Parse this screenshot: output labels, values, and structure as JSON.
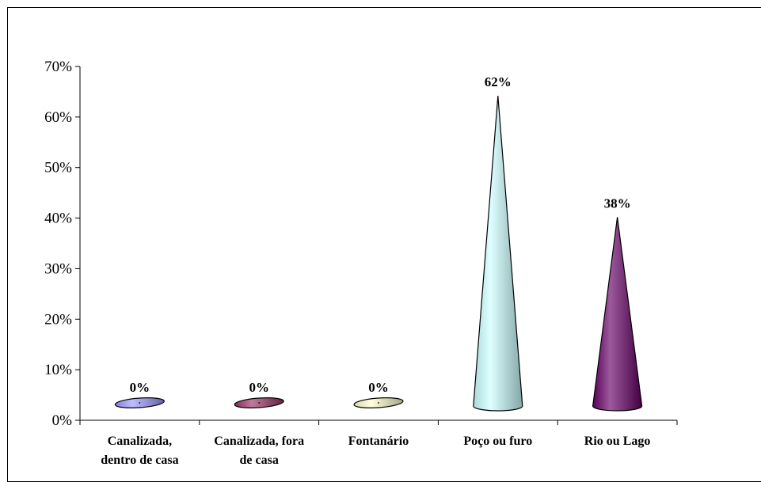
{
  "chart_data": {
    "type": "bar",
    "shape": "cone",
    "title": "",
    "xlabel": "",
    "ylabel": "",
    "categories": [
      [
        "Canalizada,",
        "dentro de casa"
      ],
      [
        "Canalizada, fora",
        "de casa"
      ],
      [
        "Fontanário"
      ],
      [
        "Poço ou furo"
      ],
      [
        "Rio ou Lago"
      ]
    ],
    "values": [
      0,
      0,
      0,
      62,
      38
    ],
    "data_labels": [
      "0%",
      "0%",
      "0%",
      "62%",
      "38%"
    ],
    "colors": [
      "#9999ff",
      "#993366",
      "#ffffcc",
      "#ccffff",
      "#660066"
    ],
    "ylim": [
      0,
      70
    ],
    "yticks": [
      "0%",
      "10%",
      "20%",
      "30%",
      "40%",
      "50%",
      "60%",
      "70%"
    ],
    "grid": false,
    "legend": "none"
  }
}
